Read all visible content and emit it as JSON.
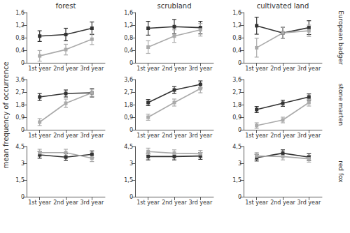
{
  "y_label": "mean frequency of occurrence",
  "columns": [
    "forest",
    "scrubland",
    "cultivated land"
  ],
  "rows": [
    "European badger",
    "stone marten",
    "red fox"
  ],
  "chart_data": [
    {
      "type": "line",
      "categories": [
        "1st year",
        "2nd year",
        "3rd year"
      ],
      "ylim": [
        0,
        1.6
      ],
      "yticks": [
        0,
        {
          "value": 0.4,
          "label": "0,4"
        },
        {
          "value": 0.8,
          "label": "0,8"
        },
        {
          "value": 1.2,
          "label": "1,2"
        },
        {
          "value": 1.6,
          "label": "1,6"
        }
      ],
      "grid": false,
      "series": [
        {
          "color": "#333333",
          "marker": "square",
          "values": [
            0.85,
            0.9,
            1.1
          ],
          "errors": [
            0.17,
            0.2,
            0.2
          ]
        },
        {
          "color": "#aaaaaa",
          "marker": "square",
          "values": [
            0.22,
            0.42,
            0.75
          ],
          "errors": [
            0.17,
            0.17,
            0.17
          ]
        }
      ]
    },
    {
      "type": "line",
      "categories": [
        "1st year",
        "2nd year",
        "3rd year"
      ],
      "ylim": [
        0,
        1.6
      ],
      "yticks": [
        0,
        {
          "value": 0.4,
          "label": "0,4"
        },
        {
          "value": 0.8,
          "label": "0,8"
        },
        {
          "value": 1.2,
          "label": "1,2"
        },
        {
          "value": 1.6,
          "label": "1,6"
        }
      ],
      "grid": false,
      "series": [
        {
          "color": "#333333",
          "marker": "square",
          "values": [
            1.1,
            1.15,
            1.12
          ],
          "errors": [
            0.22,
            0.23,
            0.2
          ]
        },
        {
          "color": "#aaaaaa",
          "marker": "square",
          "values": [
            0.5,
            0.85,
            1.05
          ],
          "errors": [
            0.2,
            0.2,
            0.2
          ]
        }
      ]
    },
    {
      "type": "line",
      "categories": [
        "1st year",
        "2nd year",
        "3rd year"
      ],
      "ylim": [
        0,
        1.6
      ],
      "yticks": [
        0,
        {
          "value": 0.4,
          "label": "0,4"
        },
        {
          "value": 0.8,
          "label": "0,8"
        },
        {
          "value": 1.2,
          "label": "1,2"
        },
        {
          "value": 1.6,
          "label": "1,6"
        }
      ],
      "grid": false,
      "series": [
        {
          "color": "#333333",
          "marker": "square",
          "values": [
            1.18,
            0.95,
            1.12
          ],
          "errors": [
            0.27,
            0.18,
            0.22
          ]
        },
        {
          "color": "#aaaaaa",
          "marker": "square",
          "values": [
            0.48,
            0.95,
            1.02
          ],
          "errors": [
            0.3,
            0.18,
            0.18
          ]
        }
      ]
    },
    {
      "type": "line",
      "categories": [
        "1st year",
        "2nd year",
        "3rd year"
      ],
      "ylim": [
        0,
        3.6
      ],
      "yticks": [
        0,
        {
          "value": 0.9,
          "label": "0,9"
        },
        {
          "value": 1.8,
          "label": "1,8"
        },
        {
          "value": 2.7,
          "label": "2,7"
        },
        {
          "value": 3.6,
          "label": "3,6"
        }
      ],
      "grid": false,
      "series": [
        {
          "color": "#333333",
          "marker": "square",
          "values": [
            2.35,
            2.6,
            2.65
          ],
          "errors": [
            0.25,
            0.25,
            0.3
          ]
        },
        {
          "color": "#aaaaaa",
          "marker": "square",
          "values": [
            0.55,
            1.9,
            2.65
          ],
          "errors": [
            0.25,
            0.3,
            0.25
          ]
        }
      ]
    },
    {
      "type": "line",
      "categories": [
        "1st year",
        "2nd year",
        "3rd year"
      ],
      "ylim": [
        0,
        3.6
      ],
      "yticks": [
        0,
        {
          "value": 0.9,
          "label": "0,9"
        },
        {
          "value": 1.8,
          "label": "1,8"
        },
        {
          "value": 2.7,
          "label": "2,7"
        },
        {
          "value": 3.6,
          "label": "3,6"
        }
      ],
      "grid": false,
      "series": [
        {
          "color": "#333333",
          "marker": "square",
          "values": [
            1.95,
            2.85,
            3.25
          ],
          "errors": [
            0.22,
            0.25,
            0.25
          ]
        },
        {
          "color": "#aaaaaa",
          "marker": "square",
          "values": [
            0.9,
            1.95,
            2.95
          ],
          "errors": [
            0.22,
            0.25,
            0.3
          ]
        }
      ]
    },
    {
      "type": "line",
      "categories": [
        "1st year",
        "2nd year",
        "3rd year"
      ],
      "ylim": [
        0,
        3.6
      ],
      "yticks": [
        0,
        {
          "value": 0.9,
          "label": "0,9"
        },
        {
          "value": 1.8,
          "label": "1,8"
        },
        {
          "value": 2.7,
          "label": "2,7"
        },
        {
          "value": 3.6,
          "label": "3,6"
        }
      ],
      "grid": false,
      "series": [
        {
          "color": "#333333",
          "marker": "square",
          "values": [
            1.45,
            1.9,
            2.35
          ],
          "errors": [
            0.22,
            0.22,
            0.22
          ]
        },
        {
          "color": "#aaaaaa",
          "marker": "square",
          "values": [
            0.3,
            0.7,
            1.95
          ],
          "errors": [
            0.2,
            0.2,
            0.25
          ]
        }
      ]
    },
    {
      "type": "line",
      "categories": [
        "1st year",
        "2nd year",
        "3rd year"
      ],
      "ylim": [
        0,
        4.5
      ],
      "yticks": [
        0,
        {
          "value": 1.5,
          "label": "1,5"
        },
        3,
        {
          "value": 4.5,
          "label": "4,5"
        }
      ],
      "grid": false,
      "series": [
        {
          "color": "#333333",
          "marker": "square",
          "values": [
            3.75,
            3.55,
            3.8
          ],
          "errors": [
            0.3,
            0.3,
            0.3
          ]
        },
        {
          "color": "#aaaaaa",
          "marker": "square",
          "values": [
            3.95,
            3.95,
            3.45
          ],
          "errors": [
            0.3,
            0.3,
            0.3
          ]
        }
      ]
    },
    {
      "type": "line",
      "categories": [
        "1st year",
        "2nd year",
        "3rd year"
      ],
      "ylim": [
        0,
        4.5
      ],
      "yticks": [
        0,
        {
          "value": 1.5,
          "label": "1,5"
        },
        3,
        {
          "value": 4.5,
          "label": "4,5"
        }
      ],
      "grid": false,
      "series": [
        {
          "color": "#333333",
          "marker": "square",
          "values": [
            3.6,
            3.6,
            3.65
          ],
          "errors": [
            0.3,
            0.3,
            0.3
          ]
        },
        {
          "color": "#aaaaaa",
          "marker": "square",
          "values": [
            4.05,
            3.9,
            3.85
          ],
          "errors": [
            0.3,
            0.3,
            0.3
          ]
        }
      ]
    },
    {
      "type": "line",
      "categories": [
        "1st year",
        "2nd year",
        "3rd year"
      ],
      "ylim": [
        0,
        4.5
      ],
      "yticks": [
        0,
        {
          "value": 1.5,
          "label": "1,5"
        },
        3,
        {
          "value": 4.5,
          "label": "4,5"
        }
      ],
      "grid": false,
      "series": [
        {
          "color": "#333333",
          "marker": "square",
          "values": [
            3.5,
            3.9,
            3.55
          ],
          "errors": [
            0.3,
            0.3,
            0.3
          ]
        },
        {
          "color": "#aaaaaa",
          "marker": "square",
          "values": [
            3.65,
            3.6,
            3.4
          ],
          "errors": [
            0.3,
            0.3,
            0.3
          ]
        }
      ]
    }
  ]
}
